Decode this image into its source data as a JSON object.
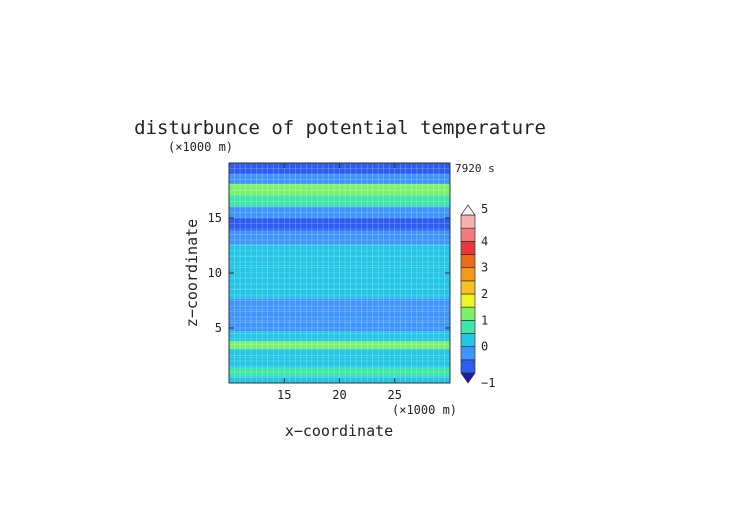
{
  "chart_data": {
    "type": "heatmap",
    "title": "disturbunce of potential temperature",
    "xlabel": "x−coordinate",
    "ylabel": "z−coordinate",
    "x_unit": "(×1000 m)",
    "y_unit": "(×1000 m)",
    "time_label": "7920 s",
    "xlim": [
      10,
      30
    ],
    "ylim": [
      0,
      20
    ],
    "x_ticks": [
      "15",
      "20",
      "25"
    ],
    "y_ticks": [
      "5",
      "10",
      "15"
    ],
    "x_tick_values": [
      15,
      20,
      25
    ],
    "y_tick_values": [
      5,
      10,
      15
    ],
    "grid": true,
    "colorbar": {
      "tick_labels": [
        "−1",
        "0",
        "1",
        "2",
        "3",
        "4",
        "5"
      ],
      "levels": [
        -1,
        -0.5,
        0,
        0.5,
        1,
        1.5,
        2,
        2.5,
        3,
        3.5,
        4,
        4.5,
        5
      ],
      "colors": [
        "#1a1aa8",
        "#2d5cf0",
        "#3f95ff",
        "#23c6e6",
        "#3ee6a8",
        "#7cf26a",
        "#f0f52a",
        "#f8c020",
        "#f59a12",
        "#ee6a18",
        "#e83838",
        "#f27a7a",
        "#f7b0b0",
        "#f5f5f5"
      ]
    },
    "value_bands": [
      {
        "z": 0.2,
        "value": 0.2
      },
      {
        "z": 1.0,
        "value": 0.9
      },
      {
        "z": 1.8,
        "value": 0.2
      },
      {
        "z": 2.8,
        "value": 0.3
      },
      {
        "z": 3.4,
        "value": 1.0
      },
      {
        "z": 4.2,
        "value": 0.3
      },
      {
        "z": 5.2,
        "value": -0.5
      },
      {
        "z": 6.2,
        "value": -0.2
      },
      {
        "z": 7.2,
        "value": -0.3
      },
      {
        "z": 8.2,
        "value": 0.1
      },
      {
        "z": 9.0,
        "value": 0.2
      },
      {
        "z": 10.2,
        "value": 0.1
      },
      {
        "z": 11.2,
        "value": 0.1
      },
      {
        "z": 12.0,
        "value": 0.1
      },
      {
        "z": 13.2,
        "value": -0.1
      },
      {
        "z": 14.5,
        "value": -0.6
      },
      {
        "z": 15.5,
        "value": -0.2
      },
      {
        "z": 16.6,
        "value": 0.8
      },
      {
        "z": 17.6,
        "value": 1.3
      },
      {
        "z": 18.6,
        "value": -0.2
      },
      {
        "z": 19.4,
        "value": -0.7
      }
    ]
  }
}
